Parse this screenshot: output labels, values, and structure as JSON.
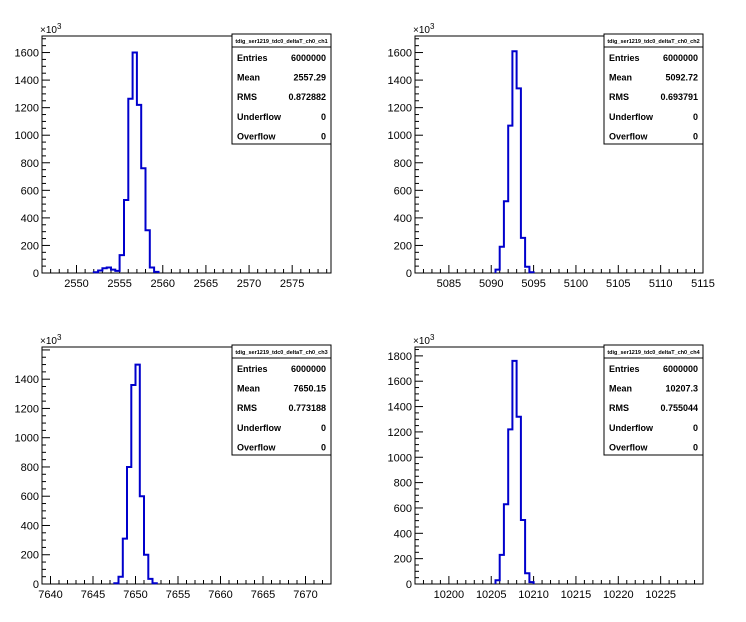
{
  "chart_data": [
    {
      "type": "bar",
      "title": "tdig_ser1219_tdc0_deltaT_ch0_ch1",
      "multiplier": "×10",
      "multiplier_exp": "3",
      "xlim": [
        2546,
        2579.5
      ],
      "ylim": [
        0,
        1720
      ],
      "xticks": [
        2550,
        2555,
        2560,
        2565,
        2570,
        2575
      ],
      "yticks": [
        0,
        200,
        400,
        600,
        800,
        1000,
        1200,
        1400,
        1600
      ],
      "bins": {
        "lo": 2552,
        "width": 0.5,
        "values": [
          5,
          18,
          35,
          40,
          25,
          15,
          130,
          530,
          1265,
          1600,
          1220,
          760,
          310,
          40,
          8
        ]
      },
      "stats": [
        {
          "label": "Entries",
          "value": "6000000"
        },
        {
          "label": "Mean",
          "value": "2557.29"
        },
        {
          "label": "RMS",
          "value": "0.872882"
        },
        {
          "label": "Underflow",
          "value": "0"
        },
        {
          "label": "Overflow",
          "value": "0"
        }
      ]
    },
    {
      "type": "bar",
      "title": "tdig_ser1219_tdc0_deltaT_ch0_ch2",
      "multiplier": "×10",
      "multiplier_exp": "3",
      "xlim": [
        5081,
        5115
      ],
      "ylim": [
        0,
        1720
      ],
      "xticks": [
        5085,
        5090,
        5095,
        5100,
        5105,
        5110,
        5115
      ],
      "yticks": [
        0,
        200,
        400,
        600,
        800,
        1000,
        1200,
        1400,
        1600
      ],
      "bins": {
        "lo": 5090.5,
        "width": 0.5,
        "values": [
          25,
          190,
          520,
          1070,
          1610,
          1340,
          255,
          45,
          5
        ]
      },
      "stats": [
        {
          "label": "Entries",
          "value": "6000000"
        },
        {
          "label": "Mean",
          "value": "5092.72"
        },
        {
          "label": "RMS",
          "value": "0.693791"
        },
        {
          "label": "Underflow",
          "value": "0"
        },
        {
          "label": "Overflow",
          "value": "0"
        }
      ]
    },
    {
      "type": "bar",
      "title": "tdig_ser1219_tdc0_deltaT_ch0_ch3",
      "multiplier": "×10",
      "multiplier_exp": "3",
      "xlim": [
        7639,
        7673
      ],
      "ylim": [
        0,
        1620
      ],
      "xticks": [
        7640,
        7645,
        7650,
        7655,
        7660,
        7665,
        7670
      ],
      "yticks": [
        0,
        200,
        400,
        600,
        800,
        1000,
        1200,
        1400
      ],
      "bins": {
        "lo": 7647.5,
        "width": 0.5,
        "values": [
          5,
          50,
          310,
          800,
          1360,
          1500,
          600,
          200,
          35,
          5
        ]
      },
      "stats": [
        {
          "label": "Entries",
          "value": "6000000"
        },
        {
          "label": "Mean",
          "value": "7650.15"
        },
        {
          "label": "RMS",
          "value": "0.773188"
        },
        {
          "label": "Underflow",
          "value": "0"
        },
        {
          "label": "Overflow",
          "value": "0"
        }
      ]
    },
    {
      "type": "bar",
      "title": "tdig_ser1219_tdc0_deltaT_ch0_ch4",
      "multiplier": "×10",
      "multiplier_exp": "3",
      "xlim": [
        10196,
        10230
      ],
      "ylim": [
        0,
        1870
      ],
      "xticks": [
        10200,
        10205,
        10210,
        10215,
        10220,
        10225
      ],
      "yticks": [
        0,
        200,
        400,
        600,
        800,
        1000,
        1200,
        1400,
        1600,
        1800
      ],
      "bins": {
        "lo": 10205.5,
        "width": 0.5,
        "values": [
          30,
          230,
          630,
          1220,
          1760,
          1320,
          505,
          85,
          15
        ]
      },
      "stats": [
        {
          "label": "Entries",
          "value": "6000000"
        },
        {
          "label": "Mean",
          "value": "10207.3"
        },
        {
          "label": "RMS",
          "value": "0.755044"
        },
        {
          "label": "Underflow",
          "value": "0"
        },
        {
          "label": "Overflow",
          "value": "0"
        }
      ]
    }
  ]
}
